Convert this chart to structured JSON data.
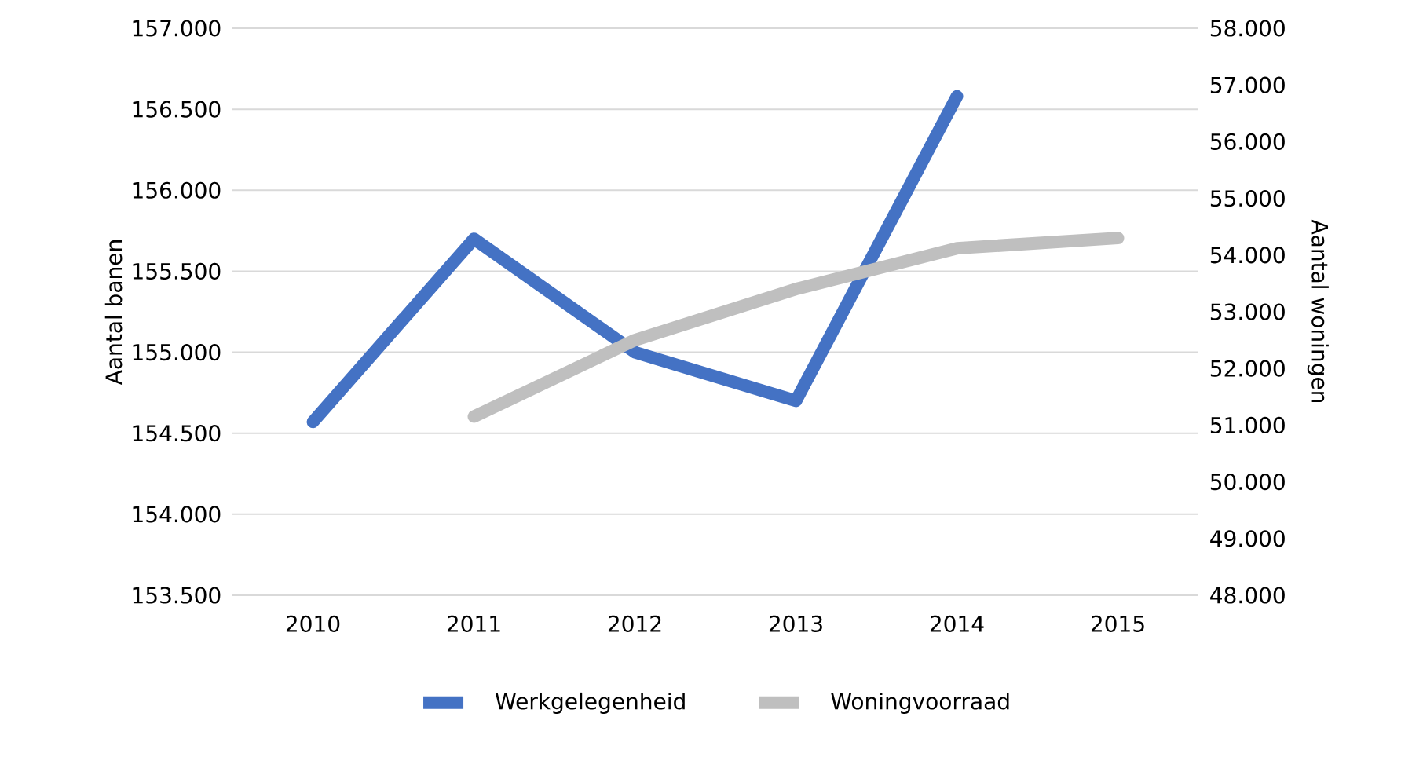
{
  "chart_data": {
    "type": "line",
    "ylabel": "Aantal banen",
    "y2label": "Aantal woningen",
    "categories": [
      "2010",
      "2011",
      "2012",
      "2013",
      "2014",
      "2015"
    ],
    "series": [
      {
        "name": "Werkgelegenheid",
        "color": "#4472c4",
        "values": [
          154570,
          155700,
          155000,
          154700,
          156580,
          null
        ]
      },
      {
        "name": "Woningvoorraad",
        "color": "#bfbfbf",
        "axis": "y2",
        "values": [
          null,
          51150,
          52500,
          53400,
          54120,
          54300
        ]
      }
    ],
    "ylim": [
      153500,
      157000
    ],
    "yticks": [
      {
        "value": 153500,
        "label": "153.500"
      },
      {
        "value": 154000,
        "label": "154.000"
      },
      {
        "value": 154500,
        "label": "154.500"
      },
      {
        "value": 155000,
        "label": "155.000"
      },
      {
        "value": 155500,
        "label": "155.500"
      },
      {
        "value": 156000,
        "label": "156.000"
      },
      {
        "value": 156500,
        "label": "156.500"
      },
      {
        "value": 157000,
        "label": "157.000"
      }
    ],
    "y2lim": [
      48000,
      58000
    ],
    "y2ticks": [
      {
        "value": 48000,
        "label": "48.000"
      },
      {
        "value": 49000,
        "label": "49.000"
      },
      {
        "value": 50000,
        "label": "50.000"
      },
      {
        "value": 51000,
        "label": "51.000"
      },
      {
        "value": 52000,
        "label": "52.000"
      },
      {
        "value": 53000,
        "label": "53.000"
      },
      {
        "value": 54000,
        "label": "54.000"
      },
      {
        "value": 55000,
        "label": "55.000"
      },
      {
        "value": 56000,
        "label": "56.000"
      },
      {
        "value": 57000,
        "label": "57.000"
      },
      {
        "value": 58000,
        "label": "58.000"
      }
    ],
    "grid": "y",
    "legend": "bottom",
    "marker": "none",
    "line_style": "solid"
  }
}
